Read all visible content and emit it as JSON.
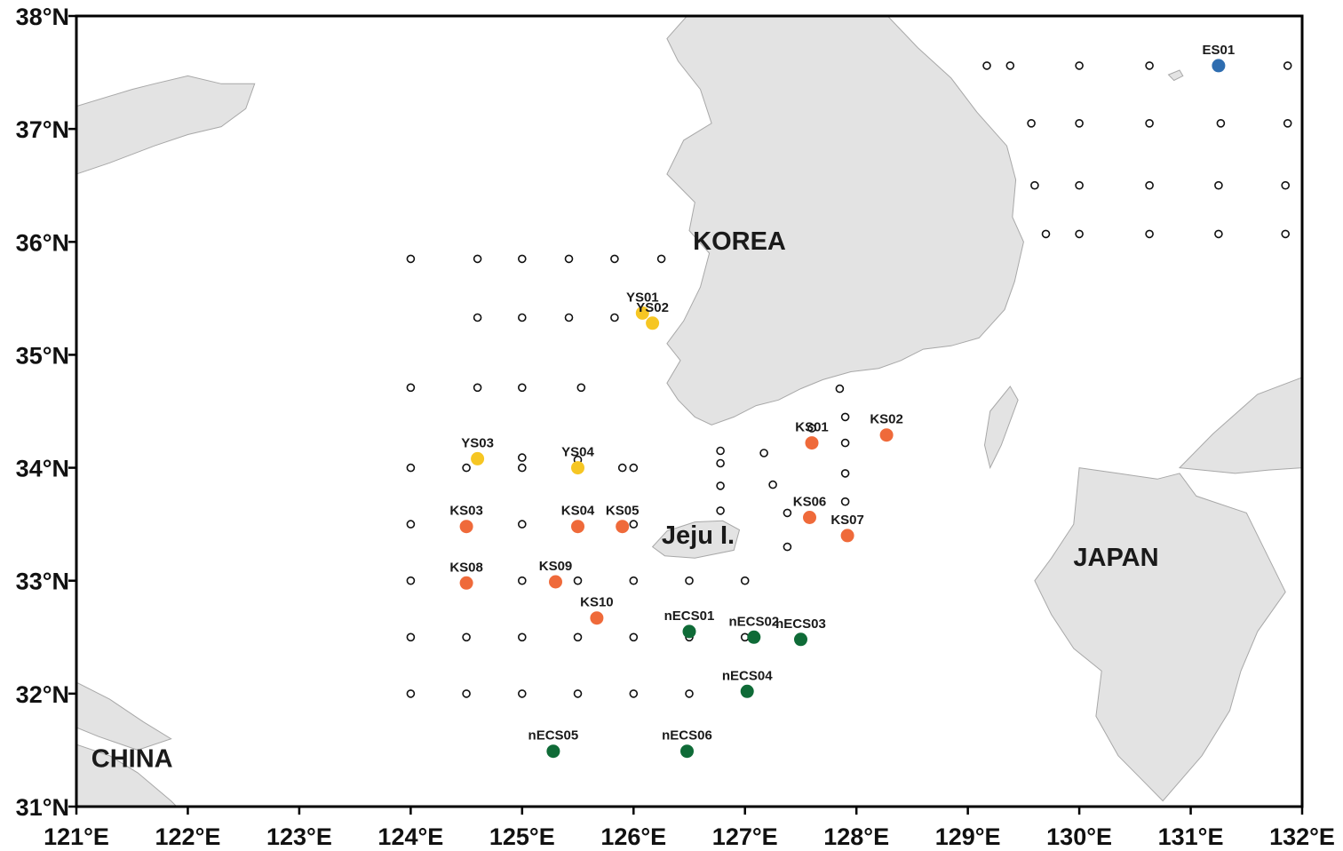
{
  "map": {
    "lon_range": [
      121,
      132
    ],
    "lat_range": [
      31,
      38
    ],
    "lon_ticks": [
      "121°E",
      "122°E",
      "123°E",
      "124°E",
      "125°E",
      "126°E",
      "127°E",
      "128°E",
      "129°E",
      "130°E",
      "131°E",
      "132°E"
    ],
    "lat_ticks": [
      "38°N",
      "37°N",
      "36°N",
      "35°N",
      "34°N",
      "33°N",
      "32°N",
      "31°N"
    ],
    "land_color": "#e3e3e3",
    "land_edge_color": "#a8a8a8",
    "frame_color": "#000000"
  },
  "regions": [
    {
      "label": "KOREA",
      "lon": 126.95,
      "lat": 35.93
    },
    {
      "label": "JAPAN",
      "lon": 130.33,
      "lat": 33.13
    },
    {
      "label": "CHINA",
      "lon": 121.5,
      "lat": 31.35
    },
    {
      "label": "Jeju I.",
      "lon": 126.58,
      "lat": 33.33
    }
  ],
  "station_colors": {
    "YS": "#f6c623",
    "KS": "#ef6a3a",
    "nECS": "#0f6b37",
    "ES": "#2e6db0"
  },
  "stations": [
    {
      "id": "ES01",
      "group": "ES",
      "lon": 131.25,
      "lat": 37.56
    },
    {
      "id": "YS01",
      "group": "YS",
      "lon": 126.08,
      "lat": 35.37
    },
    {
      "id": "YS02",
      "group": "YS",
      "lon": 126.17,
      "lat": 35.28
    },
    {
      "id": "YS03",
      "group": "YS",
      "lon": 124.6,
      "lat": 34.08
    },
    {
      "id": "YS04",
      "group": "YS",
      "lon": 125.5,
      "lat": 34.0
    },
    {
      "id": "KS01",
      "group": "KS",
      "lon": 127.6,
      "lat": 34.22
    },
    {
      "id": "KS02",
      "group": "KS",
      "lon": 128.27,
      "lat": 34.29
    },
    {
      "id": "KS03",
      "group": "KS",
      "lon": 124.5,
      "lat": 33.48
    },
    {
      "id": "KS04",
      "group": "KS",
      "lon": 125.5,
      "lat": 33.48
    },
    {
      "id": "KS05",
      "group": "KS",
      "lon": 125.9,
      "lat": 33.48
    },
    {
      "id": "KS06",
      "group": "KS",
      "lon": 127.58,
      "lat": 33.56
    },
    {
      "id": "KS07",
      "group": "KS",
      "lon": 127.92,
      "lat": 33.4
    },
    {
      "id": "KS08",
      "group": "KS",
      "lon": 124.5,
      "lat": 32.98
    },
    {
      "id": "KS09",
      "group": "KS",
      "lon": 125.3,
      "lat": 32.99
    },
    {
      "id": "KS10",
      "group": "KS",
      "lon": 125.67,
      "lat": 32.67
    },
    {
      "id": "nECS01",
      "group": "nECS",
      "lon": 126.5,
      "lat": 32.55
    },
    {
      "id": "nECS02",
      "group": "nECS",
      "lon": 127.08,
      "lat": 32.5
    },
    {
      "id": "nECS03",
      "group": "nECS",
      "lon": 127.5,
      "lat": 32.48
    },
    {
      "id": "nECS04",
      "group": "nECS",
      "lon": 127.02,
      "lat": 32.02
    },
    {
      "id": "nECS05",
      "group": "nECS",
      "lon": 125.28,
      "lat": 31.49
    },
    {
      "id": "nECS06",
      "group": "nECS",
      "lon": 126.48,
      "lat": 31.49
    }
  ],
  "background_stations": [
    [
      129.17,
      37.56
    ],
    [
      129.38,
      37.56
    ],
    [
      130.0,
      37.56
    ],
    [
      130.63,
      37.56
    ],
    [
      131.87,
      37.56
    ],
    [
      129.57,
      37.05
    ],
    [
      130.0,
      37.05
    ],
    [
      130.63,
      37.05
    ],
    [
      131.27,
      37.05
    ],
    [
      131.87,
      37.05
    ],
    [
      129.6,
      36.5
    ],
    [
      130.0,
      36.5
    ],
    [
      130.63,
      36.5
    ],
    [
      131.25,
      36.5
    ],
    [
      131.85,
      36.5
    ],
    [
      129.7,
      36.07
    ],
    [
      130.0,
      36.07
    ],
    [
      130.63,
      36.07
    ],
    [
      131.25,
      36.07
    ],
    [
      131.85,
      36.07
    ],
    [
      124.0,
      35.85
    ],
    [
      124.6,
      35.85
    ],
    [
      125.0,
      35.85
    ],
    [
      125.42,
      35.85
    ],
    [
      125.83,
      35.85
    ],
    [
      126.25,
      35.85
    ],
    [
      124.6,
      35.33
    ],
    [
      125.0,
      35.33
    ],
    [
      125.42,
      35.33
    ],
    [
      125.83,
      35.33
    ],
    [
      124.0,
      34.71
    ],
    [
      124.6,
      34.71
    ],
    [
      125.0,
      34.71
    ],
    [
      125.53,
      34.71
    ],
    [
      127.85,
      34.7
    ],
    [
      127.9,
      34.45
    ],
    [
      127.9,
      34.22
    ],
    [
      127.9,
      33.95
    ],
    [
      127.9,
      33.7
    ],
    [
      127.6,
      34.35
    ],
    [
      127.17,
      34.13
    ],
    [
      126.78,
      34.15
    ],
    [
      126.78,
      34.04
    ],
    [
      126.78,
      33.84
    ],
    [
      126.78,
      33.62
    ],
    [
      127.25,
      33.85
    ],
    [
      127.38,
      33.6
    ],
    [
      127.38,
      33.3
    ],
    [
      124.0,
      34.0
    ],
    [
      124.5,
      34.0
    ],
    [
      125.0,
      34.0
    ],
    [
      125.0,
      34.09
    ],
    [
      125.5,
      34.07
    ],
    [
      125.9,
      34.0
    ],
    [
      126.0,
      34.0
    ],
    [
      124.0,
      33.5
    ],
    [
      125.0,
      33.5
    ],
    [
      126.0,
      33.5
    ],
    [
      124.0,
      33.0
    ],
    [
      125.0,
      33.0
    ],
    [
      125.5,
      33.0
    ],
    [
      126.0,
      33.0
    ],
    [
      126.5,
      33.0
    ],
    [
      127.0,
      33.0
    ],
    [
      124.0,
      32.5
    ],
    [
      124.5,
      32.5
    ],
    [
      125.0,
      32.5
    ],
    [
      125.5,
      32.5
    ],
    [
      126.0,
      32.5
    ],
    [
      126.5,
      32.5
    ],
    [
      127.0,
      32.5
    ],
    [
      124.0,
      32.0
    ],
    [
      124.5,
      32.0
    ],
    [
      125.0,
      32.0
    ],
    [
      125.5,
      32.0
    ],
    [
      126.0,
      32.0
    ],
    [
      126.5,
      32.0
    ]
  ],
  "land": {
    "korea": [
      [
        126.48,
        38
      ],
      [
        127.3,
        38
      ],
      [
        127.9,
        38
      ],
      [
        128.28,
        38
      ],
      [
        128.55,
        37.72
      ],
      [
        128.85,
        37.45
      ],
      [
        129.08,
        37.15
      ],
      [
        129.35,
        36.85
      ],
      [
        129.43,
        36.55
      ],
      [
        129.4,
        36.22
      ],
      [
        129.5,
        36.0
      ],
      [
        129.42,
        35.65
      ],
      [
        129.33,
        35.4
      ],
      [
        129.1,
        35.15
      ],
      [
        128.85,
        35.08
      ],
      [
        128.6,
        35.05
      ],
      [
        128.4,
        34.95
      ],
      [
        128.2,
        34.88
      ],
      [
        127.95,
        34.85
      ],
      [
        127.7,
        34.78
      ],
      [
        127.5,
        34.7
      ],
      [
        127.3,
        34.6
      ],
      [
        127.1,
        34.55
      ],
      [
        126.9,
        34.45
      ],
      [
        126.7,
        34.38
      ],
      [
        126.55,
        34.45
      ],
      [
        126.4,
        34.6
      ],
      [
        126.3,
        34.75
      ],
      [
        126.42,
        34.95
      ],
      [
        126.3,
        35.1
      ],
      [
        126.45,
        35.3
      ],
      [
        126.6,
        35.6
      ],
      [
        126.68,
        35.9
      ],
      [
        126.5,
        36.1
      ],
      [
        126.55,
        36.35
      ],
      [
        126.3,
        36.6
      ],
      [
        126.45,
        36.9
      ],
      [
        126.7,
        37.05
      ],
      [
        126.6,
        37.35
      ],
      [
        126.4,
        37.6
      ],
      [
        126.3,
        37.8
      ]
    ],
    "shandong": [
      [
        121.0,
        37.2
      ],
      [
        121.5,
        37.35
      ],
      [
        121.7,
        37.4
      ],
      [
        122.0,
        37.47
      ],
      [
        122.3,
        37.4
      ],
      [
        122.6,
        37.4
      ],
      [
        122.52,
        37.18
      ],
      [
        122.3,
        37.02
      ],
      [
        122.0,
        36.95
      ],
      [
        121.7,
        36.85
      ],
      [
        121.3,
        36.7
      ],
      [
        121.0,
        36.6
      ]
    ],
    "china_south": [
      [
        121.0,
        31.55
      ],
      [
        121.3,
        31.45
      ],
      [
        121.55,
        31.3
      ],
      [
        121.85,
        31.05
      ],
      [
        122.0,
        30.9
      ],
      [
        122.0,
        31.0
      ],
      [
        121.0,
        31.0
      ]
    ],
    "china_yangtze": [
      [
        121.0,
        32.1
      ],
      [
        121.3,
        31.95
      ],
      [
        121.6,
        31.75
      ],
      [
        121.85,
        31.6
      ],
      [
        121.55,
        31.5
      ],
      [
        121.2,
        31.62
      ],
      [
        121.0,
        31.7
      ]
    ],
    "kyushu": [
      [
        130.0,
        34.0
      ],
      [
        130.35,
        33.95
      ],
      [
        130.7,
        33.9
      ],
      [
        130.9,
        33.95
      ],
      [
        131.05,
        33.75
      ],
      [
        131.5,
        33.6
      ],
      [
        131.7,
        33.2
      ],
      [
        131.85,
        32.9
      ],
      [
        131.6,
        32.55
      ],
      [
        131.45,
        32.2
      ],
      [
        131.35,
        31.85
      ],
      [
        131.1,
        31.45
      ],
      [
        130.75,
        31.05
      ],
      [
        130.55,
        31.25
      ],
      [
        130.35,
        31.45
      ],
      [
        130.15,
        31.8
      ],
      [
        130.2,
        32.2
      ],
      [
        129.95,
        32.4
      ],
      [
        129.75,
        32.7
      ],
      [
        129.6,
        33.0
      ],
      [
        129.75,
        33.2
      ],
      [
        129.95,
        33.5
      ]
    ],
    "honshu": [
      [
        130.9,
        34.0
      ],
      [
        131.2,
        34.3
      ],
      [
        131.6,
        34.65
      ],
      [
        132.0,
        34.8
      ],
      [
        132.0,
        34.0
      ],
      [
        131.7,
        33.98
      ],
      [
        131.4,
        33.95
      ],
      [
        131.1,
        33.98
      ]
    ],
    "tsushima": [
      [
        129.2,
        34.0
      ],
      [
        129.3,
        34.2
      ],
      [
        129.45,
        34.6
      ],
      [
        129.38,
        34.72
      ],
      [
        129.2,
        34.5
      ],
      [
        129.15,
        34.2
      ]
    ],
    "jeju": [
      [
        126.17,
        33.3
      ],
      [
        126.3,
        33.44
      ],
      [
        126.55,
        33.52
      ],
      [
        126.8,
        33.53
      ],
      [
        126.95,
        33.45
      ],
      [
        126.9,
        33.27
      ],
      [
        126.55,
        33.2
      ],
      [
        126.28,
        33.22
      ]
    ],
    "ulleung": [
      [
        130.8,
        37.48
      ],
      [
        130.9,
        37.52
      ],
      [
        130.93,
        37.47
      ],
      [
        130.85,
        37.43
      ]
    ]
  }
}
